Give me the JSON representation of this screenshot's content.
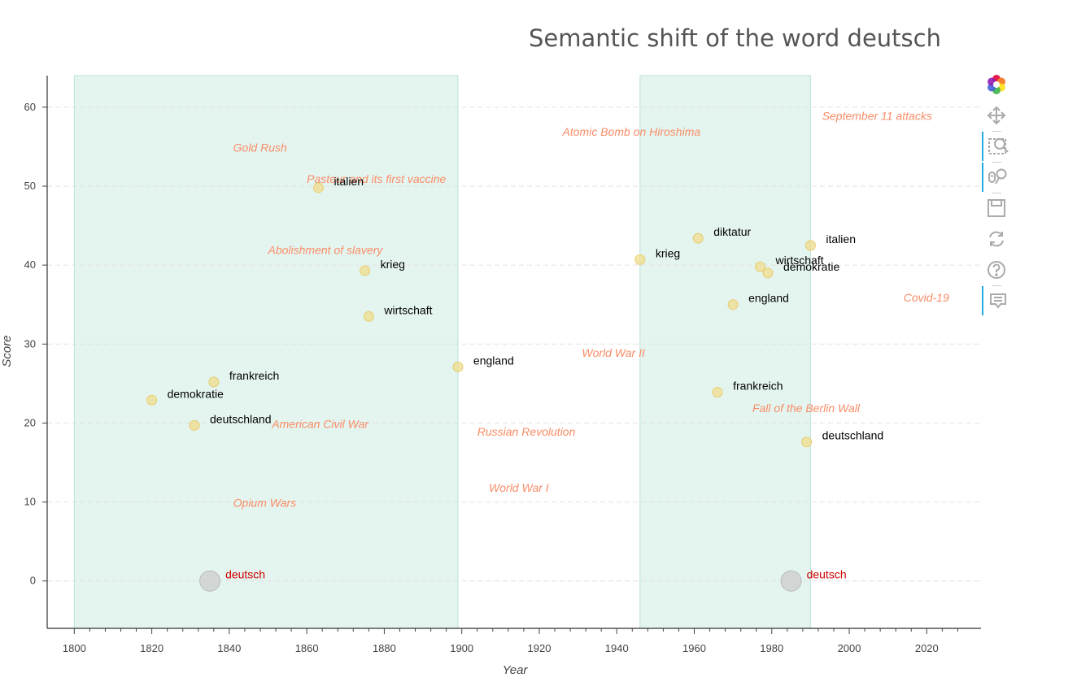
{
  "chart_data": {
    "type": "scatter",
    "title": "Semantic shift of the word deutsch",
    "xlabel": "Year",
    "ylabel": "Score",
    "xlim": [
      1793,
      2034
    ],
    "ylim": [
      -6,
      64
    ],
    "x_ticks": [
      "1800",
      "1820",
      "1840",
      "1860",
      "1880",
      "1900",
      "1920",
      "1940",
      "1960",
      "1980",
      "2000",
      "2020"
    ],
    "y_ticks": [
      "0",
      "10",
      "20",
      "30",
      "40",
      "50",
      "60"
    ],
    "grid": "horizontal dashed",
    "colors": {
      "point": "#f0dc8c",
      "point_stroke": "#e8cc70",
      "target_point": "#cccccc",
      "target_label": "#cc0000",
      "event_label": "#fa8c66",
      "band": "#d2efe6",
      "word_label": "#000000"
    },
    "periods": [
      {
        "start": 1800,
        "end": 1899
      },
      {
        "start": 1946,
        "end": 1990
      }
    ],
    "target_points": [
      {
        "label": "deutsch",
        "x": 1835,
        "y": 0
      },
      {
        "label": "deutsch",
        "x": 1985,
        "y": 0
      }
    ],
    "points": [
      {
        "label": "italien",
        "x": 1863,
        "y": 49.8
      },
      {
        "label": "krieg",
        "x": 1875,
        "y": 39.3
      },
      {
        "label": "wirtschaft",
        "x": 1876,
        "y": 33.5
      },
      {
        "label": "england",
        "x": 1899,
        "y": 27.1
      },
      {
        "label": "frankreich",
        "x": 1836,
        "y": 25.2
      },
      {
        "label": "demokratie",
        "x": 1820,
        "y": 22.9
      },
      {
        "label": "deutschland",
        "x": 1831,
        "y": 19.7
      },
      {
        "label": "krieg",
        "x": 1946,
        "y": 40.7
      },
      {
        "label": "diktatur",
        "x": 1961,
        "y": 43.4
      },
      {
        "label": "italien",
        "x": 1990,
        "y": 42.5
      },
      {
        "label": "wirtschaft",
        "x": 1977,
        "y": 39.8
      },
      {
        "label": "demokratie",
        "x": 1979,
        "y": 39.0
      },
      {
        "label": "england",
        "x": 1970,
        "y": 35.0
      },
      {
        "label": "frankreich",
        "x": 1966,
        "y": 23.9
      },
      {
        "label": "deutschland",
        "x": 1989,
        "y": 17.6
      }
    ],
    "events": [
      {
        "label": "September 11 attacks",
        "x": 1993,
        "y": 58.4
      },
      {
        "label": "Atomic Bomb on Hiroshima",
        "x": 1926,
        "y": 56.4
      },
      {
        "label": "Gold Rush",
        "x": 1841,
        "y": 54.4
      },
      {
        "label": "Pasteur and its first vaccine",
        "x": 1860,
        "y": 50.4
      },
      {
        "label": "Abolishment of slavery",
        "x": 1850,
        "y": 41.4
      },
      {
        "label": "Covid-19",
        "x": 2014,
        "y": 35.4
      },
      {
        "label": "World War II",
        "x": 1931,
        "y": 28.4
      },
      {
        "label": "Fall of the Berlin Wall",
        "x": 1975,
        "y": 21.4
      },
      {
        "label": "American Civil War",
        "x": 1851,
        "y": 19.4
      },
      {
        "label": "Russian Revolution",
        "x": 1904,
        "y": 18.4
      },
      {
        "label": "World War I",
        "x": 1907,
        "y": 11.3
      },
      {
        "label": "Opium Wars",
        "x": 1841,
        "y": 9.4
      }
    ]
  },
  "toolbar": {
    "tools": [
      {
        "name": "bokeh-logo-icon",
        "active": false
      },
      {
        "name": "pan-tool-icon",
        "active": false
      },
      {
        "name": "box-zoom-tool-icon",
        "active": true
      },
      {
        "name": "wheel-zoom-tool-icon",
        "active": true
      },
      {
        "name": "save-tool-icon",
        "active": false
      },
      {
        "name": "reset-tool-icon",
        "active": false
      },
      {
        "name": "help-tool-icon",
        "active": false
      },
      {
        "name": "hover-tool-icon",
        "active": true
      }
    ]
  }
}
